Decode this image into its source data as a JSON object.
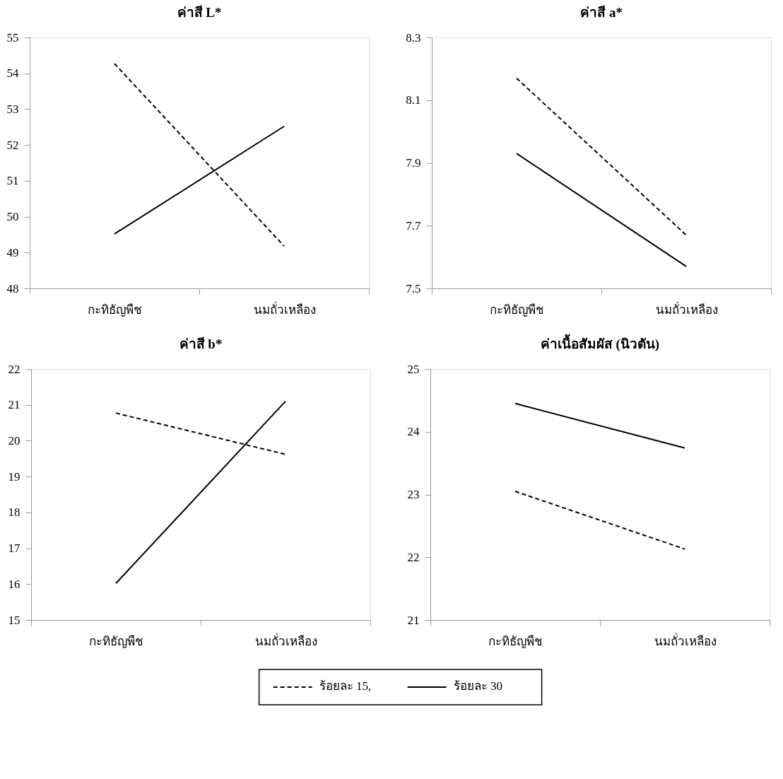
{
  "chart_data": [
    {
      "type": "line",
      "title": "ค่าสี L*",
      "categories": [
        "กะทิธัญพืช",
        "นมถั่วเหลือง"
      ],
      "ylim": [
        48,
        55
      ],
      "yticks": [
        48,
        49,
        50,
        51,
        52,
        53,
        54,
        55
      ],
      "grid": false,
      "marker": "none",
      "series": [
        {
          "color": "#000000",
          "line_style": "dashed",
          "values": [
            54.27,
            49.18
          ]
        },
        {
          "color": "#000000",
          "line_style": "solid",
          "values": [
            49.52,
            52.52
          ]
        }
      ]
    },
    {
      "type": "line",
      "title": "ค่าสี  a*",
      "categories": [
        "กะทิธัญพืช",
        "นมถั่วเหลือง"
      ],
      "ylim": [
        7.5,
        8.3
      ],
      "yticks": [
        7.5,
        7.7,
        7.9,
        8.1,
        8.3
      ],
      "grid": false,
      "marker": "none",
      "series": [
        {
          "color": "#000000",
          "line_style": "dashed",
          "values": [
            8.17,
            7.67
          ]
        },
        {
          "color": "#000000",
          "line_style": "solid",
          "values": [
            7.93,
            7.57
          ]
        }
      ]
    },
    {
      "type": "line",
      "title": "ค่าสี b*",
      "categories": [
        "กะทิธัญพืช",
        "นมถั่วเหลือง"
      ],
      "ylim": [
        15,
        22
      ],
      "yticks": [
        15,
        16,
        17,
        18,
        19,
        20,
        21,
        22
      ],
      "grid": false,
      "marker": "none",
      "series": [
        {
          "color": "#000000",
          "line_style": "dashed",
          "values": [
            20.77,
            19.62
          ]
        },
        {
          "color": "#000000",
          "line_style": "solid",
          "values": [
            16.02,
            21.1
          ]
        }
      ]
    },
    {
      "type": "line",
      "title": "ค่าเนื้อสัมผัส (นิวตัน)",
      "categories": [
        "กะทิธัญพืช",
        "นมถั่วเหลือง"
      ],
      "ylim": [
        21,
        25
      ],
      "yticks": [
        21,
        22,
        23,
        24,
        25
      ],
      "grid": false,
      "legend": "bottom",
      "marker": "none",
      "series": [
        {
          "name": "ร้อยละ 15,",
          "color": "#000000",
          "line_style": "dashed",
          "values": [
            23.05,
            22.13
          ]
        },
        {
          "name": "ร้อยละ 30",
          "color": "#000000",
          "line_style": "solid",
          "values": [
            24.45,
            23.74
          ]
        }
      ]
    }
  ]
}
